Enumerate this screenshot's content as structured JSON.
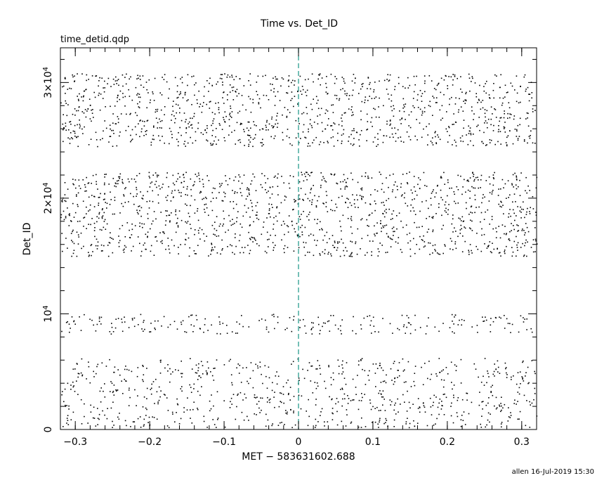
{
  "chart_data": {
    "type": "scatter",
    "title": "Time vs. Det_ID",
    "subtitle": "time_detid.qdp",
    "xlabel": "MET − 583631602.688",
    "ylabel": "Det_ID",
    "xlim": [
      -0.32,
      0.32
    ],
    "ylim": [
      0,
      33000
    ],
    "x_ticks": [
      {
        "value": -0.3,
        "label": "−0.3"
      },
      {
        "value": -0.2,
        "label": "−0.2"
      },
      {
        "value": -0.1,
        "label": "−0.1"
      },
      {
        "value": 0,
        "label": "0"
      },
      {
        "value": 0.1,
        "label": "0.1"
      },
      {
        "value": 0.2,
        "label": "0.2"
      },
      {
        "value": 0.3,
        "label": "0.3"
      }
    ],
    "y_ticks": [
      {
        "value": 0,
        "label": "0"
      },
      {
        "value": 10000,
        "label": "10^4"
      },
      {
        "value": 20000,
        "label": "2×10^4"
      },
      {
        "value": 30000,
        "label": "3×10^4"
      }
    ],
    "reference_line": {
      "x": 0,
      "style": "dashed",
      "color": "#2a9d8f"
    },
    "bands": [
      {
        "ymin": 200,
        "ymax": 6200,
        "density": 780
      },
      {
        "ymin": 8300,
        "ymax": 10000,
        "density": 230
      },
      {
        "ymin": 15000,
        "ymax": 22300,
        "density": 1350
      },
      {
        "ymin": 24500,
        "ymax": 30800,
        "density": 1150
      }
    ],
    "point_color": "#000000",
    "grid": false
  },
  "footer": {
    "credit": "allen 16-Jul-2019 15:30"
  }
}
